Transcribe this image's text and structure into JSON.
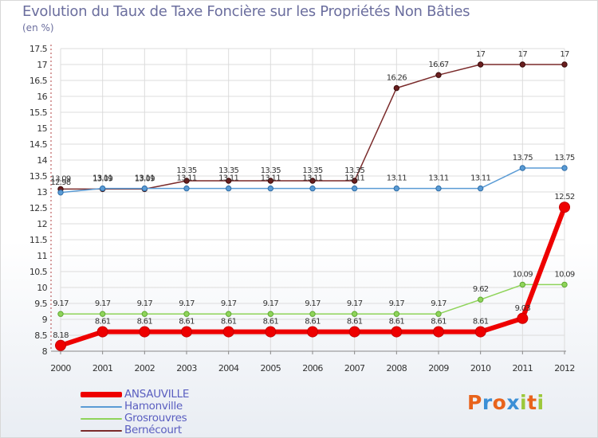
{
  "title": "Evolution du Taux de Taxe Foncière sur les Propriétés Non Bâties",
  "unit_label": "(en %)",
  "logo": {
    "letters": [
      "P",
      "r",
      "o",
      "x",
      "i",
      "t",
      "i"
    ],
    "colors": [
      "#e8631c",
      "#3b8fd6",
      "#e8631c",
      "#3b8fd6",
      "#9cc83b",
      "#e8631c",
      "#9cc83b"
    ]
  },
  "chart_data": {
    "type": "line",
    "title": "Evolution du Taux de Taxe Foncière sur les Propriétés Non Bâties",
    "ylabel": "(en %)",
    "xlabel": "",
    "x": [
      "2000",
      "2001",
      "2002",
      "2003",
      "2004",
      "2005",
      "2006",
      "2007",
      "2008",
      "2009",
      "2010",
      "2011",
      "2012"
    ],
    "ylim": [
      8,
      17.5
    ],
    "yticks": [
      "8",
      "8.5",
      "9",
      "9.5",
      "10",
      "10.5",
      "11",
      "11.5",
      "12",
      "12.5",
      "13",
      "13.5",
      "14",
      "14.5",
      "15",
      "15.5",
      "16",
      "16.5",
      "17",
      "17.5"
    ],
    "grid": true,
    "legend_position": "bottom-left",
    "series": [
      {
        "name": "ANSAUVILLE",
        "color": "#ee0000",
        "values": [
          8.18,
          8.61,
          8.61,
          8.61,
          8.61,
          8.61,
          8.61,
          8.61,
          8.61,
          8.61,
          8.61,
          9.03,
          12.52
        ],
        "labels": [
          "8.18",
          "8.61",
          "8.61",
          "8.61",
          "8.61",
          "8.61",
          "8.61",
          "8.61",
          "8.61",
          "8.61",
          "8.61",
          "9.03",
          "12.52"
        ]
      },
      {
        "name": "Hamonville",
        "color": "#5a9bd5",
        "values": [
          12.98,
          13.11,
          13.11,
          13.11,
          13.11,
          13.11,
          13.11,
          13.11,
          13.11,
          13.11,
          13.11,
          13.75,
          13.75
        ],
        "labels": [
          "12.98",
          "13.11",
          "13.11",
          "13.11",
          "13.11",
          "13.11",
          "13.11",
          "13.11",
          "13.11",
          "13.11",
          "13.11",
          "13.75",
          "13.75"
        ]
      },
      {
        "name": "Grosrouvres",
        "color": "#8fd45a",
        "values": [
          9.17,
          9.17,
          9.17,
          9.17,
          9.17,
          9.17,
          9.17,
          9.17,
          9.17,
          9.17,
          9.62,
          10.09,
          10.09
        ],
        "labels": [
          "9.17",
          "9.17",
          "9.17",
          "9.17",
          "9.17",
          "9.17",
          "9.17",
          "9.17",
          "9.17",
          "9.17",
          "9.62",
          "10.09",
          "10.09"
        ]
      },
      {
        "name": "Bernécourt",
        "color": "#7a2a2a",
        "values": [
          13.09,
          13.09,
          13.09,
          13.35,
          13.35,
          13.35,
          13.35,
          13.35,
          16.26,
          16.67,
          17,
          17,
          17
        ],
        "labels": [
          "13.09",
          "13.09",
          "13.09",
          "13.35",
          "13.35",
          "13.35",
          "13.35",
          "13.35",
          "16.26",
          "16.67",
          "17",
          "17",
          "17"
        ]
      }
    ]
  }
}
